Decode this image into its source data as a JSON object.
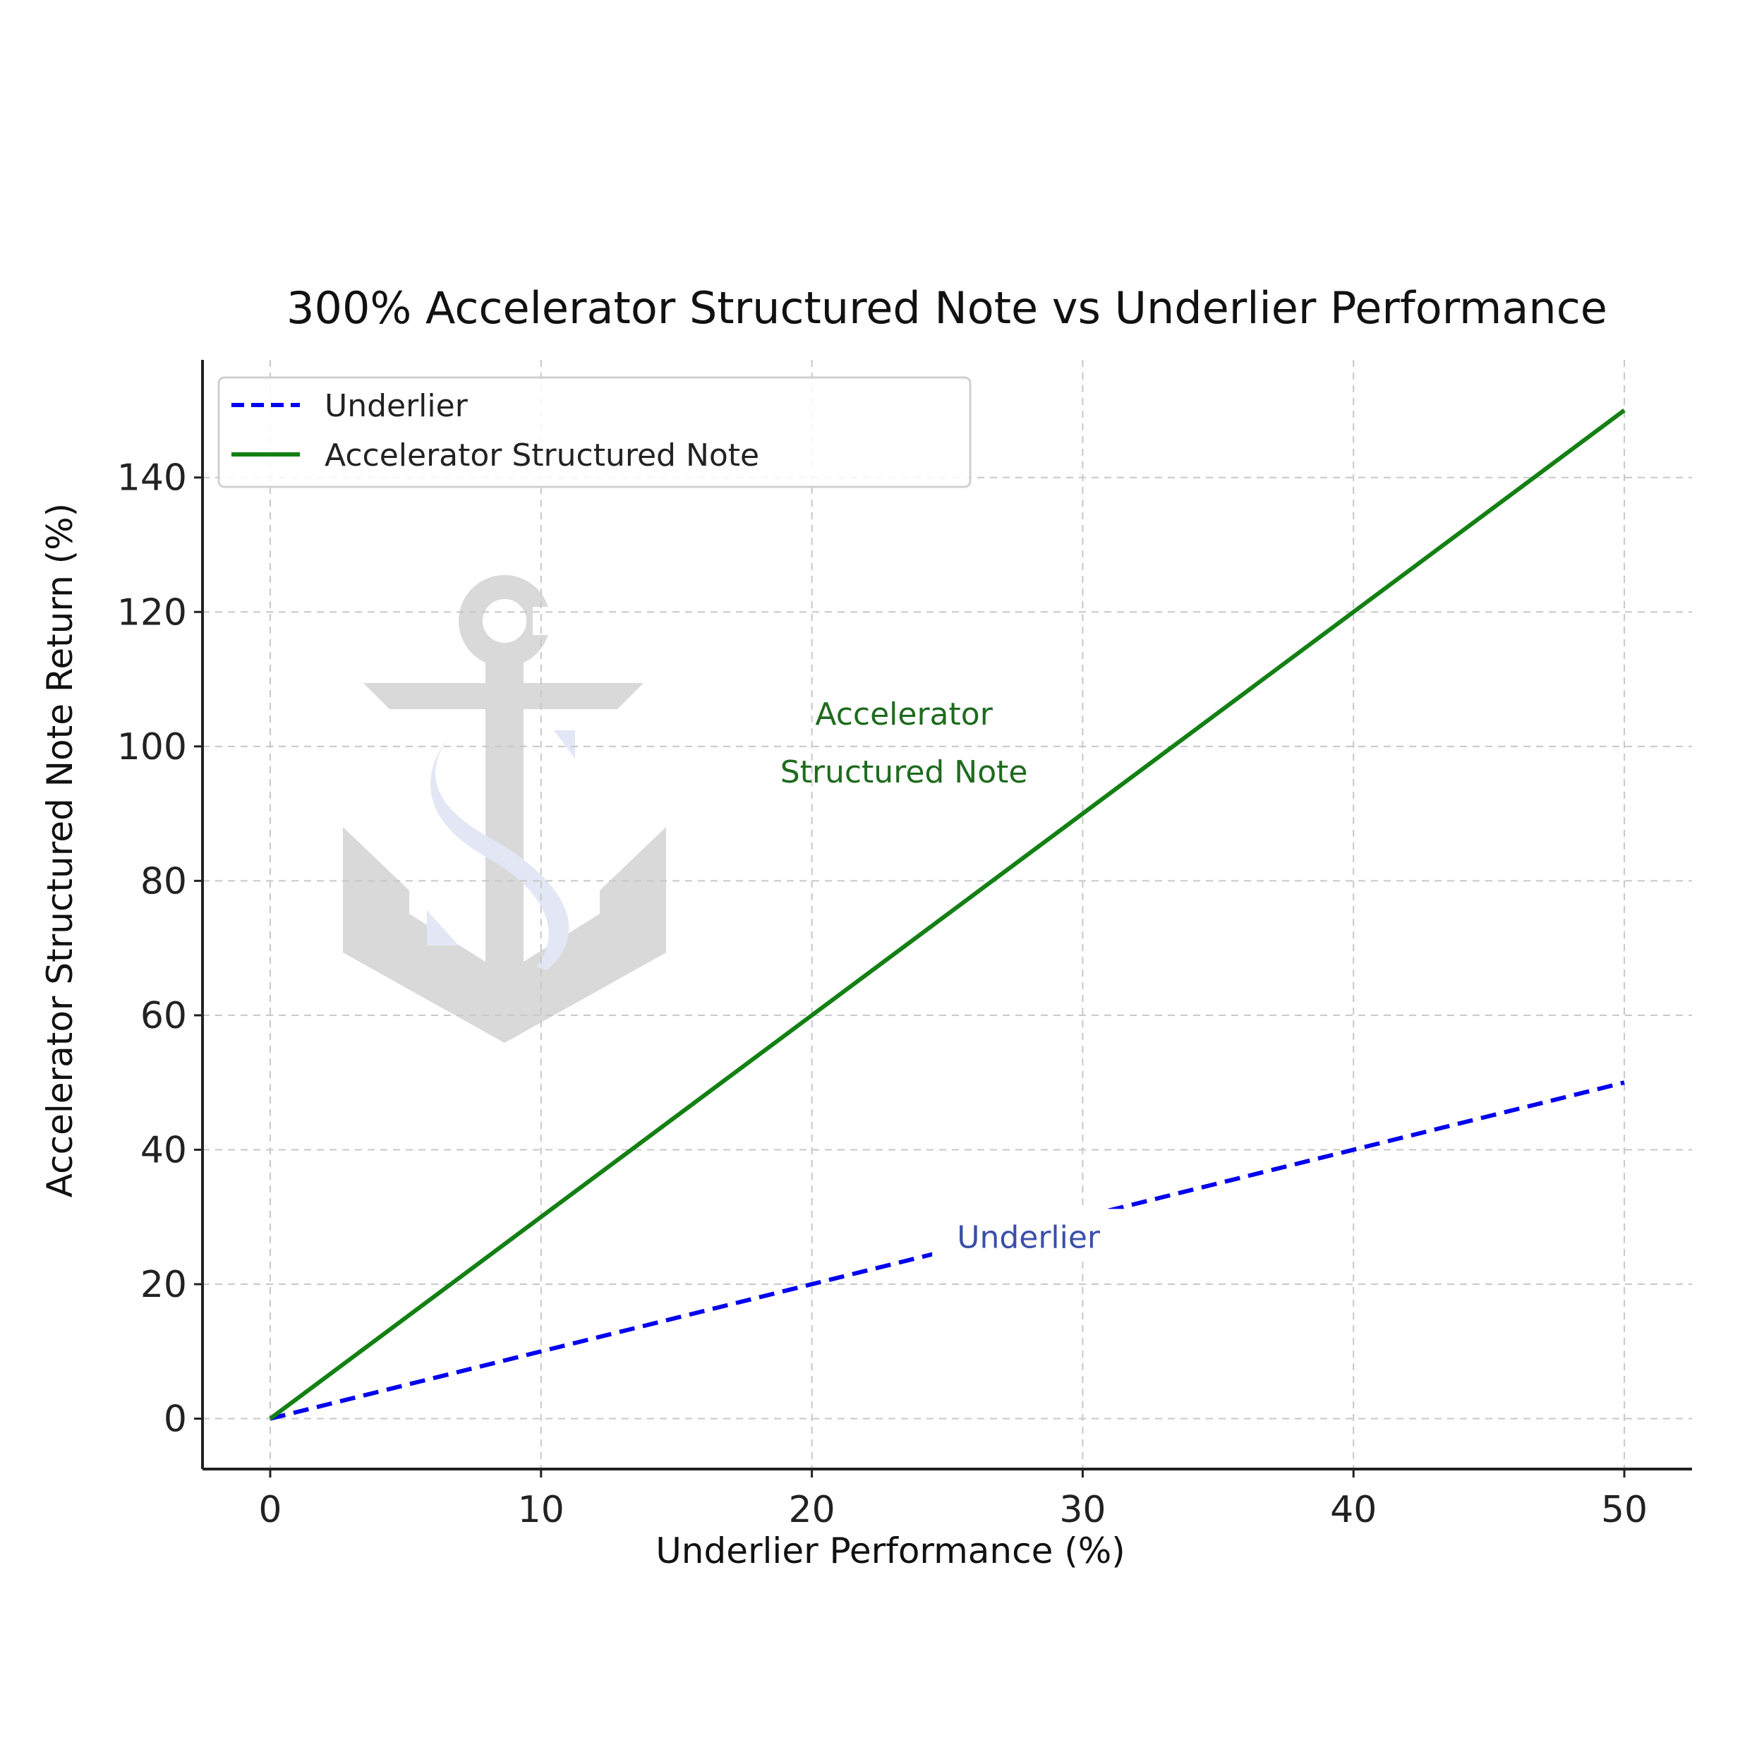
{
  "chart_data": {
    "type": "line",
    "title": "300% Accelerator Structured Note vs Underlier Performance",
    "xlabel": "Underlier Performance (%)",
    "ylabel": "Accelerator Structured Note Return (%)",
    "xlim": [
      -2.5,
      52.5
    ],
    "ylim": [
      -7.5,
      157.5
    ],
    "xticks": [
      0,
      10,
      20,
      30,
      40,
      50
    ],
    "yticks": [
      0,
      20,
      40,
      60,
      80,
      100,
      120,
      140
    ],
    "grid": true,
    "legend_position": "top-left",
    "series": [
      {
        "name": "Underlier",
        "x": [
          0,
          50
        ],
        "y": [
          0,
          50
        ],
        "color": "#0000ee",
        "style": "dashed"
      },
      {
        "name": "Accelerator Structured Note",
        "x": [
          0,
          50
        ],
        "y": [
          0,
          150
        ],
        "color": "#138013",
        "style": "solid"
      }
    ],
    "annotations": [
      {
        "lines": [
          "Accelerator",
          "Structured Note"
        ],
        "x": 23.4,
        "y": 100.5,
        "color": "#1e6b1e"
      },
      {
        "lines": [
          "Underlier"
        ],
        "x": 28.0,
        "y": 27.0,
        "color": "#3b4fa8"
      }
    ]
  },
  "watermark": {
    "type": "logo",
    "name": "anchor-logo-icon",
    "colors": [
      "#d9d9d9",
      "#e3e6f5"
    ]
  }
}
